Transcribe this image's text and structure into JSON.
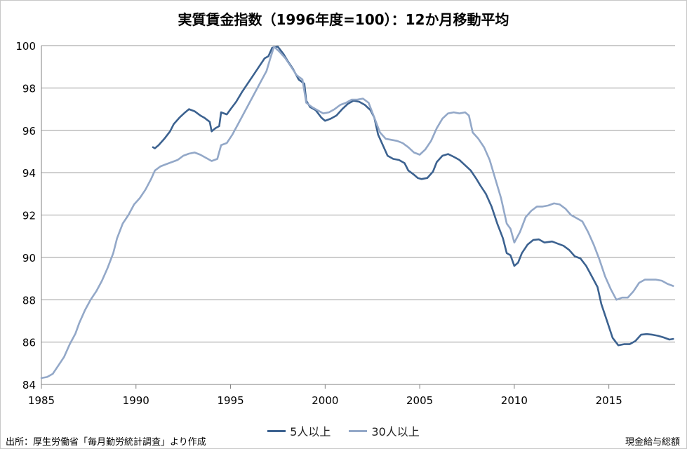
{
  "colors": {
    "series5": "#3c6290",
    "series30": "#93a8c8",
    "grid": "#9a9a9a",
    "axis": "#808080"
  },
  "source_text": "出所：厚生労働省「毎月勤労統計調査」より作成",
  "note_text": "現金給与総額",
  "chart_data": {
    "type": "line",
    "title": "実質賃金指数（1996年度=100）：12か月移動平均",
    "xlabel": "",
    "ylabel": "",
    "xlim": [
      1985,
      2018.5
    ],
    "ylim": [
      84,
      100
    ],
    "yticks": [
      84,
      86,
      88,
      90,
      92,
      94,
      96,
      98,
      100
    ],
    "xticks": [
      1985,
      1990,
      1995,
      2000,
      2005,
      2010,
      2015
    ],
    "grid": "horizontal",
    "legend": "bottom",
    "series": [
      {
        "name": "5人以上",
        "points": [
          [
            1990.9,
            95.2
          ],
          [
            1991.0,
            95.15
          ],
          [
            1991.2,
            95.3
          ],
          [
            1991.5,
            95.6
          ],
          [
            1991.8,
            95.95
          ],
          [
            1992.0,
            96.3
          ],
          [
            1992.3,
            96.6
          ],
          [
            1992.6,
            96.85
          ],
          [
            1992.8,
            97.0
          ],
          [
            1993.1,
            96.9
          ],
          [
            1993.4,
            96.7
          ],
          [
            1993.6,
            96.6
          ],
          [
            1993.9,
            96.4
          ],
          [
            1994.0,
            95.95
          ],
          [
            1994.2,
            96.1
          ],
          [
            1994.4,
            96.2
          ],
          [
            1994.5,
            96.85
          ],
          [
            1994.8,
            96.75
          ],
          [
            1995.0,
            97.0
          ],
          [
            1995.3,
            97.35
          ],
          [
            1995.6,
            97.8
          ],
          [
            1995.9,
            98.2
          ],
          [
            1996.2,
            98.6
          ],
          [
            1996.5,
            99.0
          ],
          [
            1996.8,
            99.4
          ],
          [
            1997.0,
            99.5
          ],
          [
            1997.2,
            99.9
          ],
          [
            1997.5,
            99.95
          ],
          [
            1997.8,
            99.6
          ],
          [
            1998.0,
            99.3
          ],
          [
            1998.3,
            98.9
          ],
          [
            1998.6,
            98.4
          ],
          [
            1998.9,
            98.2
          ],
          [
            1999.0,
            97.4
          ],
          [
            1999.2,
            97.1
          ],
          [
            1999.5,
            96.95
          ],
          [
            1999.8,
            96.6
          ],
          [
            2000.0,
            96.45
          ],
          [
            2000.3,
            96.55
          ],
          [
            2000.6,
            96.7
          ],
          [
            2000.9,
            97.0
          ],
          [
            2001.2,
            97.25
          ],
          [
            2001.5,
            97.4
          ],
          [
            2001.8,
            97.35
          ],
          [
            2002.1,
            97.2
          ],
          [
            2002.4,
            96.95
          ],
          [
            2002.6,
            96.6
          ],
          [
            2002.8,
            95.8
          ],
          [
            2003.1,
            95.2
          ],
          [
            2003.3,
            94.8
          ],
          [
            2003.6,
            94.65
          ],
          [
            2003.9,
            94.6
          ],
          [
            2004.2,
            94.45
          ],
          [
            2004.4,
            94.1
          ],
          [
            2004.7,
            93.9
          ],
          [
            2004.9,
            93.75
          ],
          [
            2005.1,
            93.7
          ],
          [
            2005.4,
            93.75
          ],
          [
            2005.7,
            94.05
          ],
          [
            2005.9,
            94.5
          ],
          [
            2006.2,
            94.8
          ],
          [
            2006.5,
            94.88
          ],
          [
            2006.8,
            94.75
          ],
          [
            2007.1,
            94.6
          ],
          [
            2007.4,
            94.35
          ],
          [
            2007.7,
            94.1
          ],
          [
            2008.0,
            93.7
          ],
          [
            2008.2,
            93.4
          ],
          [
            2008.5,
            93.0
          ],
          [
            2008.8,
            92.4
          ],
          [
            2009.1,
            91.6
          ],
          [
            2009.4,
            90.9
          ],
          [
            2009.6,
            90.2
          ],
          [
            2009.8,
            90.1
          ],
          [
            2010.0,
            89.6
          ],
          [
            2010.2,
            89.75
          ],
          [
            2010.4,
            90.2
          ],
          [
            2010.7,
            90.6
          ],
          [
            2011.0,
            90.82
          ],
          [
            2011.3,
            90.85
          ],
          [
            2011.6,
            90.7
          ],
          [
            2012.0,
            90.75
          ],
          [
            2012.3,
            90.65
          ],
          [
            2012.6,
            90.55
          ],
          [
            2012.9,
            90.35
          ],
          [
            2013.2,
            90.05
          ],
          [
            2013.5,
            89.95
          ],
          [
            2013.8,
            89.6
          ],
          [
            2014.1,
            89.1
          ],
          [
            2014.4,
            88.6
          ],
          [
            2014.6,
            87.8
          ],
          [
            2014.9,
            87.0
          ],
          [
            2015.2,
            86.2
          ],
          [
            2015.5,
            85.85
          ],
          [
            2015.8,
            85.9
          ],
          [
            2016.1,
            85.9
          ],
          [
            2016.4,
            86.05
          ],
          [
            2016.7,
            86.35
          ],
          [
            2017.0,
            86.38
          ],
          [
            2017.3,
            86.35
          ],
          [
            2017.6,
            86.3
          ],
          [
            2017.9,
            86.22
          ],
          [
            2018.2,
            86.12
          ],
          [
            2018.4,
            86.15
          ]
        ]
      },
      {
        "name": "30人以上",
        "points": [
          [
            1985.0,
            84.3
          ],
          [
            1985.3,
            84.35
          ],
          [
            1985.6,
            84.5
          ],
          [
            1985.9,
            84.9
          ],
          [
            1986.2,
            85.3
          ],
          [
            1986.5,
            85.9
          ],
          [
            1986.8,
            86.4
          ],
          [
            1987.0,
            86.9
          ],
          [
            1987.3,
            87.5
          ],
          [
            1987.6,
            88.0
          ],
          [
            1987.9,
            88.4
          ],
          [
            1988.2,
            88.9
          ],
          [
            1988.5,
            89.5
          ],
          [
            1988.8,
            90.2
          ],
          [
            1989.0,
            90.9
          ],
          [
            1989.3,
            91.6
          ],
          [
            1989.6,
            92.0
          ],
          [
            1989.9,
            92.5
          ],
          [
            1990.2,
            92.8
          ],
          [
            1990.5,
            93.2
          ],
          [
            1990.8,
            93.7
          ],
          [
            1991.0,
            94.1
          ],
          [
            1991.3,
            94.3
          ],
          [
            1991.6,
            94.4
          ],
          [
            1991.9,
            94.5
          ],
          [
            1992.2,
            94.6
          ],
          [
            1992.5,
            94.8
          ],
          [
            1992.8,
            94.9
          ],
          [
            1993.1,
            94.95
          ],
          [
            1993.4,
            94.85
          ],
          [
            1993.7,
            94.7
          ],
          [
            1994.0,
            94.55
          ],
          [
            1994.3,
            94.65
          ],
          [
            1994.5,
            95.3
          ],
          [
            1994.8,
            95.4
          ],
          [
            1995.1,
            95.8
          ],
          [
            1995.4,
            96.3
          ],
          [
            1995.7,
            96.8
          ],
          [
            1996.0,
            97.3
          ],
          [
            1996.3,
            97.8
          ],
          [
            1996.6,
            98.3
          ],
          [
            1996.9,
            98.8
          ],
          [
            1997.1,
            99.4
          ],
          [
            1997.3,
            99.95
          ],
          [
            1997.6,
            99.7
          ],
          [
            1997.9,
            99.4
          ],
          [
            1998.2,
            99.0
          ],
          [
            1998.5,
            98.6
          ],
          [
            1998.8,
            98.4
          ],
          [
            1999.0,
            97.3
          ],
          [
            1999.3,
            97.1
          ],
          [
            1999.6,
            96.95
          ],
          [
            1999.9,
            96.8
          ],
          [
            2000.2,
            96.85
          ],
          [
            2000.5,
            97.0
          ],
          [
            2000.8,
            97.2
          ],
          [
            2001.1,
            97.3
          ],
          [
            2001.4,
            97.45
          ],
          [
            2001.7,
            97.45
          ],
          [
            2002.0,
            97.5
          ],
          [
            2002.3,
            97.3
          ],
          [
            2002.6,
            96.6
          ],
          [
            2002.9,
            95.9
          ],
          [
            2003.2,
            95.6
          ],
          [
            2003.5,
            95.55
          ],
          [
            2003.8,
            95.5
          ],
          [
            2004.1,
            95.4
          ],
          [
            2004.4,
            95.2
          ],
          [
            2004.7,
            94.95
          ],
          [
            2005.0,
            94.85
          ],
          [
            2005.3,
            95.1
          ],
          [
            2005.6,
            95.5
          ],
          [
            2005.9,
            96.1
          ],
          [
            2006.2,
            96.55
          ],
          [
            2006.5,
            96.8
          ],
          [
            2006.8,
            96.85
          ],
          [
            2007.1,
            96.8
          ],
          [
            2007.4,
            96.85
          ],
          [
            2007.6,
            96.7
          ],
          [
            2007.8,
            95.9
          ],
          [
            2008.1,
            95.6
          ],
          [
            2008.4,
            95.2
          ],
          [
            2008.7,
            94.6
          ],
          [
            2009.0,
            93.7
          ],
          [
            2009.3,
            92.8
          ],
          [
            2009.6,
            91.6
          ],
          [
            2009.8,
            91.35
          ],
          [
            2010.0,
            90.7
          ],
          [
            2010.3,
            91.2
          ],
          [
            2010.6,
            91.9
          ],
          [
            2010.9,
            92.2
          ],
          [
            2011.2,
            92.4
          ],
          [
            2011.5,
            92.4
          ],
          [
            2011.8,
            92.45
          ],
          [
            2012.1,
            92.55
          ],
          [
            2012.4,
            92.5
          ],
          [
            2012.7,
            92.3
          ],
          [
            2013.0,
            92.0
          ],
          [
            2013.3,
            91.85
          ],
          [
            2013.6,
            91.7
          ],
          [
            2013.9,
            91.2
          ],
          [
            2014.2,
            90.6
          ],
          [
            2014.5,
            89.9
          ],
          [
            2014.8,
            89.1
          ],
          [
            2015.1,
            88.5
          ],
          [
            2015.4,
            88.0
          ],
          [
            2015.7,
            88.1
          ],
          [
            2016.0,
            88.1
          ],
          [
            2016.3,
            88.4
          ],
          [
            2016.6,
            88.8
          ],
          [
            2016.9,
            88.95
          ],
          [
            2017.2,
            88.95
          ],
          [
            2017.5,
            88.95
          ],
          [
            2017.8,
            88.9
          ],
          [
            2018.1,
            88.75
          ],
          [
            2018.4,
            88.65
          ]
        ]
      }
    ]
  }
}
